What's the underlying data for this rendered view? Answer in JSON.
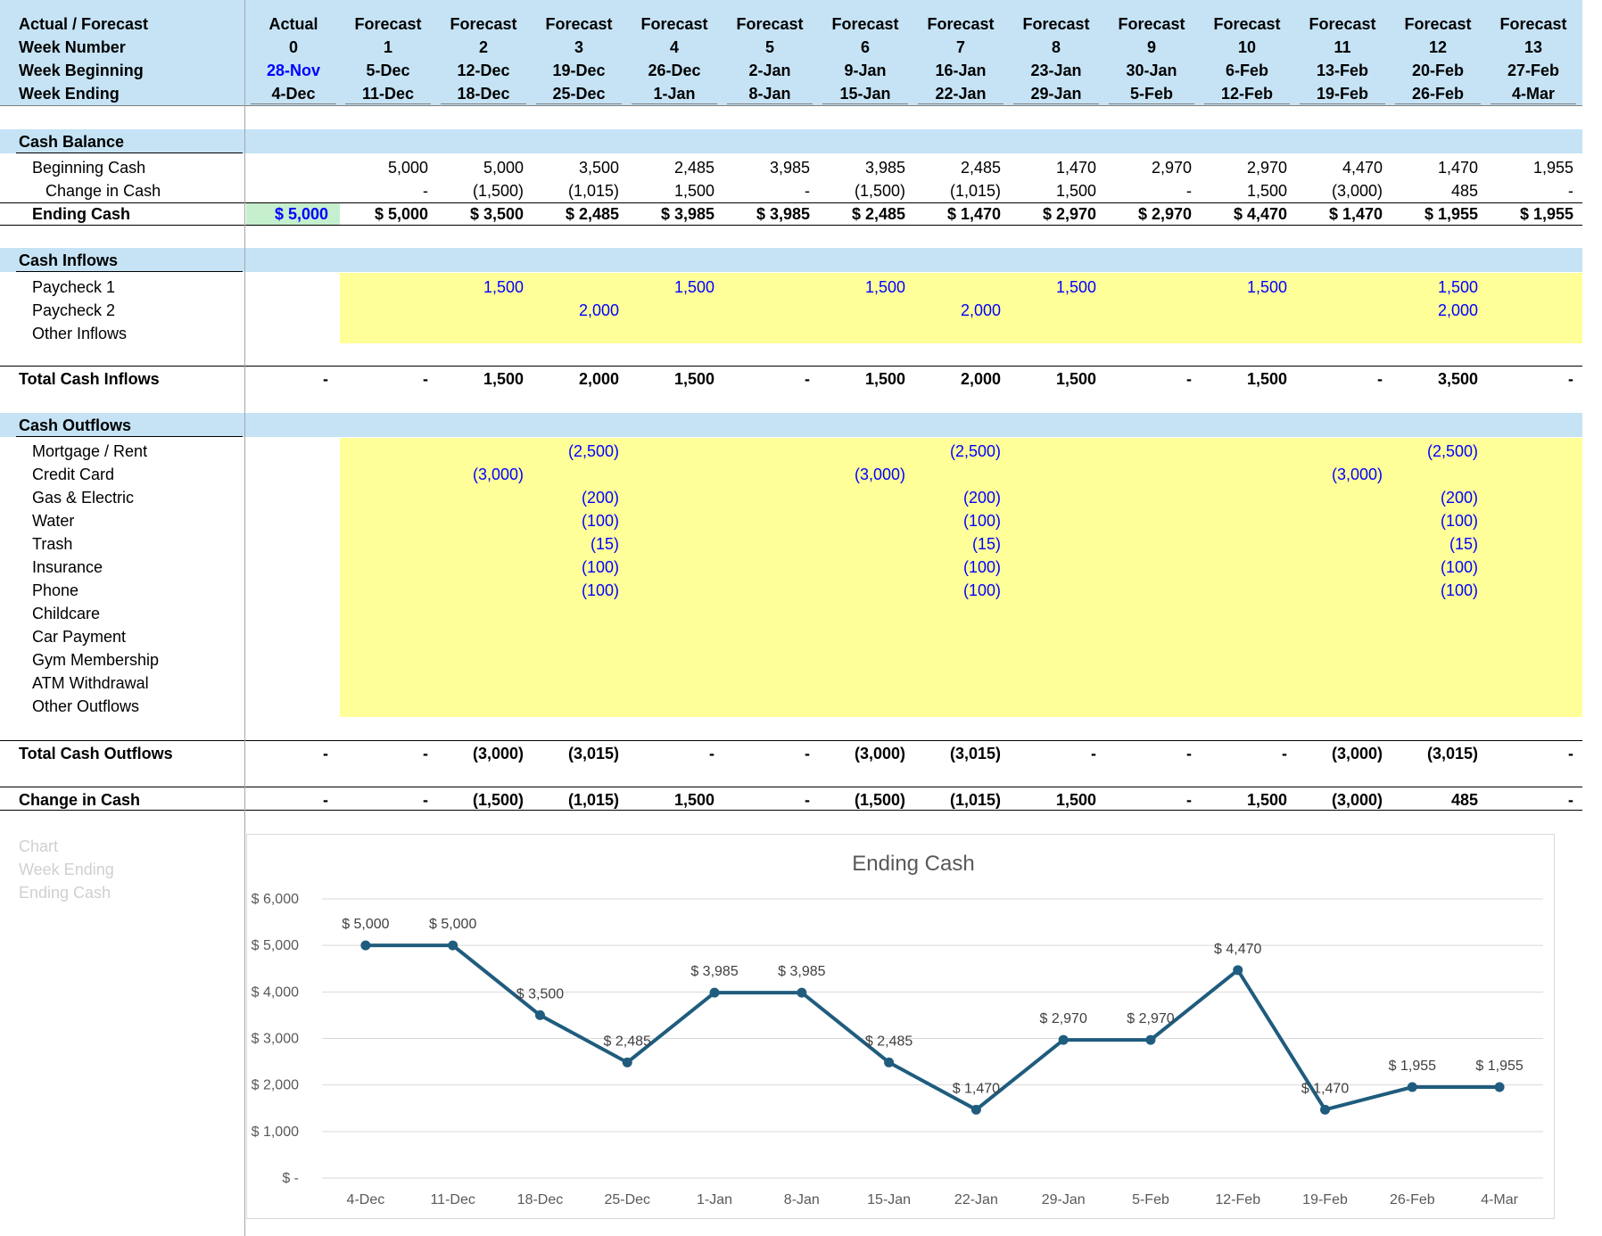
{
  "header": {
    "row_labels": [
      "Actual / Forecast",
      "Week Number",
      "Week Beginning",
      "Week Ending"
    ],
    "columns": [
      {
        "type": "Actual",
        "week": "0",
        "begin": "28-Nov",
        "end": "4-Dec"
      },
      {
        "type": "Forecast",
        "week": "1",
        "begin": "5-Dec",
        "end": "11-Dec"
      },
      {
        "type": "Forecast",
        "week": "2",
        "begin": "12-Dec",
        "end": "18-Dec"
      },
      {
        "type": "Forecast",
        "week": "3",
        "begin": "19-Dec",
        "end": "25-Dec"
      },
      {
        "type": "Forecast",
        "week": "4",
        "begin": "26-Dec",
        "end": "1-Jan"
      },
      {
        "type": "Forecast",
        "week": "5",
        "begin": "2-Jan",
        "end": "8-Jan"
      },
      {
        "type": "Forecast",
        "week": "6",
        "begin": "9-Jan",
        "end": "15-Jan"
      },
      {
        "type": "Forecast",
        "week": "7",
        "begin": "16-Jan",
        "end": "22-Jan"
      },
      {
        "type": "Forecast",
        "week": "8",
        "begin": "23-Jan",
        "end": "29-Jan"
      },
      {
        "type": "Forecast",
        "week": "9",
        "begin": "30-Jan",
        "end": "5-Feb"
      },
      {
        "type": "Forecast",
        "week": "10",
        "begin": "6-Feb",
        "end": "12-Feb"
      },
      {
        "type": "Forecast",
        "week": "11",
        "begin": "13-Feb",
        "end": "19-Feb"
      },
      {
        "type": "Forecast",
        "week": "12",
        "begin": "20-Feb",
        "end": "26-Feb"
      },
      {
        "type": "Forecast",
        "week": "13",
        "begin": "27-Feb",
        "end": "4-Mar"
      }
    ]
  },
  "cash_balance": {
    "title": "Cash Balance",
    "beginning_label": "Beginning Cash",
    "change_label": "Change in Cash",
    "ending_label": "Ending Cash",
    "beginning": [
      "",
      "5,000",
      "5,000",
      "3,500",
      "2,485",
      "3,985",
      "3,985",
      "2,485",
      "1,470",
      "2,970",
      "2,970",
      "4,470",
      "1,470",
      "1,955"
    ],
    "change": [
      "",
      "-",
      "(1,500)",
      "(1,015)",
      "1,500",
      "-",
      "(1,500)",
      "(1,015)",
      "1,500",
      "-",
      "1,500",
      "(3,000)",
      "485",
      "-"
    ],
    "ending": [
      "$ 5,000",
      "$ 5,000",
      "$ 3,500",
      "$ 2,485",
      "$ 3,985",
      "$ 3,985",
      "$ 2,485",
      "$ 1,470",
      "$ 2,970",
      "$ 2,970",
      "$ 4,470",
      "$ 1,470",
      "$ 1,955",
      "$ 1,955"
    ]
  },
  "inflows": {
    "title": "Cash Inflows",
    "rows": [
      {
        "label": "Paycheck 1",
        "values": [
          "",
          "",
          "1,500",
          "",
          "1,500",
          "",
          "1,500",
          "",
          "1,500",
          "",
          "1,500",
          "",
          "1,500",
          ""
        ]
      },
      {
        "label": "Paycheck 2",
        "values": [
          "",
          "",
          "",
          "2,000",
          "",
          "",
          "",
          "2,000",
          "",
          "",
          "",
          "",
          "2,000",
          ""
        ]
      },
      {
        "label": "Other Inflows",
        "values": [
          "",
          "",
          "",
          "",
          "",
          "",
          "",
          "",
          "",
          "",
          "",
          "",
          "",
          ""
        ]
      }
    ],
    "total_label": "Total Cash Inflows",
    "total": [
      "-",
      "-",
      "1,500",
      "2,000",
      "1,500",
      "-",
      "1,500",
      "2,000",
      "1,500",
      "-",
      "1,500",
      "-",
      "3,500",
      "-"
    ]
  },
  "outflows": {
    "title": "Cash Outflows",
    "rows": [
      {
        "label": "Mortgage / Rent",
        "values": [
          "",
          "",
          "",
          "(2,500)",
          "",
          "",
          "",
          "(2,500)",
          "",
          "",
          "",
          "",
          "(2,500)",
          ""
        ]
      },
      {
        "label": "Credit Card",
        "values": [
          "",
          "",
          "(3,000)",
          "",
          "",
          "",
          "(3,000)",
          "",
          "",
          "",
          "",
          "(3,000)",
          "",
          ""
        ]
      },
      {
        "label": "Gas & Electric",
        "values": [
          "",
          "",
          "",
          "(200)",
          "",
          "",
          "",
          "(200)",
          "",
          "",
          "",
          "",
          "(200)",
          ""
        ]
      },
      {
        "label": "Water",
        "values": [
          "",
          "",
          "",
          "(100)",
          "",
          "",
          "",
          "(100)",
          "",
          "",
          "",
          "",
          "(100)",
          ""
        ]
      },
      {
        "label": "Trash",
        "values": [
          "",
          "",
          "",
          "(15)",
          "",
          "",
          "",
          "(15)",
          "",
          "",
          "",
          "",
          "(15)",
          ""
        ]
      },
      {
        "label": "Insurance",
        "values": [
          "",
          "",
          "",
          "(100)",
          "",
          "",
          "",
          "(100)",
          "",
          "",
          "",
          "",
          "(100)",
          ""
        ]
      },
      {
        "label": "Phone",
        "values": [
          "",
          "",
          "",
          "(100)",
          "",
          "",
          "",
          "(100)",
          "",
          "",
          "",
          "",
          "(100)",
          ""
        ]
      },
      {
        "label": "Childcare",
        "values": [
          "",
          "",
          "",
          "",
          "",
          "",
          "",
          "",
          "",
          "",
          "",
          "",
          "",
          ""
        ]
      },
      {
        "label": "Car Payment",
        "values": [
          "",
          "",
          "",
          "",
          "",
          "",
          "",
          "",
          "",
          "",
          "",
          "",
          "",
          ""
        ]
      },
      {
        "label": "Gym Membership",
        "values": [
          "",
          "",
          "",
          "",
          "",
          "",
          "",
          "",
          "",
          "",
          "",
          "",
          "",
          ""
        ]
      },
      {
        "label": "ATM Withdrawal",
        "values": [
          "",
          "",
          "",
          "",
          "",
          "",
          "",
          "",
          "",
          "",
          "",
          "",
          "",
          ""
        ]
      },
      {
        "label": "Other Outflows",
        "values": [
          "",
          "",
          "",
          "",
          "",
          "",
          "",
          "",
          "",
          "",
          "",
          "",
          "",
          ""
        ]
      }
    ],
    "total_label": "Total Cash Outflows",
    "total": [
      "-",
      "-",
      "(3,000)",
      "(3,015)",
      "-",
      "-",
      "(3,000)",
      "(3,015)",
      "-",
      "-",
      "-",
      "(3,000)",
      "(3,015)",
      "-"
    ]
  },
  "change_in_cash": {
    "label": "Change in Cash",
    "values": [
      "-",
      "-",
      "(1,500)",
      "(1,015)",
      "1,500",
      "-",
      "(1,500)",
      "(1,015)",
      "1,500",
      "-",
      "1,500",
      "(3,000)",
      "485",
      "-"
    ]
  },
  "chart_labels": [
    "Chart",
    "Week Ending",
    "Ending Cash"
  ],
  "colors": {
    "header_band": "#c5e3f5",
    "input_fill": "#ffff99",
    "ending_highlight": "#c6efce",
    "series": "#1f5c7e",
    "input_text": "#0000ff"
  },
  "chart_data": {
    "type": "line",
    "title": "Ending Cash",
    "categories": [
      "4-Dec",
      "11-Dec",
      "18-Dec",
      "25-Dec",
      "1-Jan",
      "8-Jan",
      "15-Jan",
      "22-Jan",
      "29-Jan",
      "5-Feb",
      "12-Feb",
      "19-Feb",
      "26-Feb",
      "4-Mar"
    ],
    "values": [
      5000,
      5000,
      3500,
      2485,
      3985,
      3985,
      2485,
      1470,
      2970,
      2970,
      4470,
      1470,
      1955,
      1955
    ],
    "data_labels": [
      "$ 5,000",
      "$ 5,000",
      "$ 3,500",
      "$ 2,485",
      "$ 3,985",
      "$ 3,985",
      "$ 2,485",
      "$ 1,470",
      "$ 2,970",
      "$ 2,970",
      "$ 4,470",
      "$ 1,470",
      "$ 1,955",
      "$ 1,955"
    ],
    "ytick_labels": [
      "$ -",
      "$ 1,000",
      "$ 2,000",
      "$ 3,000",
      "$ 4,000",
      "$ 5,000",
      "$ 6,000"
    ],
    "ylim": [
      0,
      6000
    ],
    "grid": true,
    "legend": "none"
  }
}
